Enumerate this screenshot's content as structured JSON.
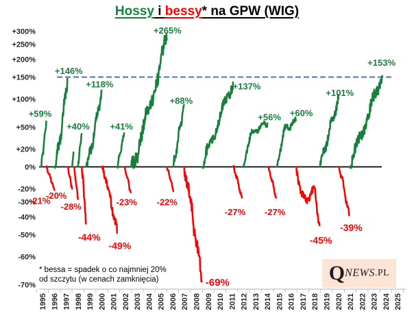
{
  "title": {
    "part1": "Hossy",
    "part2": " i ",
    "part3": "bessy",
    "part4": "*",
    "part5": " na GPW (WIG)"
  },
  "footnote": {
    "line1": "* bessa = spadek o co najmniej 20%",
    "line2": "od szczytu (w cenach zamknięcia)"
  },
  "logo": {
    "q": "Q",
    "news": "NEWS",
    "pl": ".PL"
  },
  "colors": {
    "bull": "#17803d",
    "bear": "#ff0000",
    "reference": "#4472c4",
    "axis_text": "#262626",
    "axis_line": "#bfbfbf",
    "zero_line": "#000000"
  },
  "chart_data": {
    "type": "line",
    "title": "Hossy i bessy* na GPW (WIG)",
    "subtitle_note": "green = bull market run-ups from 0%, red = bear market drawdowns from 0%",
    "scale": "logarithmic percent change",
    "grid": "off",
    "reference_line": {
      "value": 150,
      "style": "dashed",
      "color": "#4472c4"
    },
    "y_axis": {
      "ticks": [
        {
          "value": 300,
          "label": "+300%"
        },
        {
          "value": 250,
          "label": "+250%"
        },
        {
          "value": 200,
          "label": "+200%"
        },
        {
          "value": 150,
          "label": "+150%"
        },
        {
          "value": 100,
          "label": "+100%"
        },
        {
          "value": 50,
          "label": "+50%"
        },
        {
          "value": 20,
          "label": "+20%"
        },
        {
          "value": 0,
          "label": "0%"
        },
        {
          "value": -20,
          "label": "-20%"
        },
        {
          "value": -30,
          "label": "-30%"
        },
        {
          "value": -40,
          "label": "-40%"
        },
        {
          "value": -50,
          "label": "-50%"
        },
        {
          "value": -60,
          "label": "-60%"
        },
        {
          "value": -70,
          "label": "-70%"
        }
      ]
    },
    "x_axis": {
      "ticks": [
        1995,
        1996,
        1997,
        1998,
        1999,
        2000,
        2001,
        2002,
        2003,
        2004,
        2005,
        2006,
        2007,
        2008,
        2009,
        2010,
        2011,
        2012,
        2013,
        2014,
        2015,
        2016,
        2017,
        2018,
        2019,
        2020,
        2021,
        2022,
        2023,
        2024,
        2025
      ]
    },
    "segments": [
      {
        "type": "bull",
        "label": "+59%",
        "value": 59,
        "start": 1994.9,
        "end": 1995.32,
        "shape": 1.0,
        "label_dx": -9,
        "label_dy": -10
      },
      {
        "type": "bear",
        "label": "-21%",
        "value": -21,
        "start": 1995.32,
        "end": 1996.0,
        "shape": 1.1,
        "label_dx": -21,
        "label_dy": 17
      },
      {
        "type": "bull",
        "label": "+146%",
        "value": 146,
        "start": 1996.0,
        "end": 1997.1,
        "shape": 1.35,
        "label_dx": 2,
        "label_dy": -10
      },
      {
        "type": "bear",
        "label": "-20%",
        "value": -20,
        "start": 1997.12,
        "end": 1997.5,
        "shape": 1.1,
        "label_dx": -23,
        "label_dy": 11
      },
      {
        "type": "bull",
        "label": "",
        "value": 16,
        "start": 1997.5,
        "end": 1997.62,
        "shape": 1.0
      },
      {
        "type": "bear",
        "label": "-28%",
        "value": -28,
        "start": 1997.64,
        "end": 1998.0,
        "shape": 1.1,
        "label_dx": -10,
        "label_dy": 12
      },
      {
        "type": "bull",
        "label": "+40%",
        "value": 40,
        "start": 1998.0,
        "end": 1998.3,
        "shape": 1.0,
        "label_dx": -5,
        "label_dy": -10
      },
      {
        "type": "bear",
        "label": "-44%",
        "value": -44,
        "start": 1998.32,
        "end": 1998.66,
        "shape": 1.2,
        "label_dx": 5,
        "label_dy": 21,
        "label_size": 14
      },
      {
        "type": "bull",
        "label": "+118%",
        "value": 118,
        "start": 1998.7,
        "end": 2000.0,
        "shape": 1.2,
        "label_dx": -3,
        "label_dy": -8
      },
      {
        "type": "bear",
        "label": "-49%",
        "value": -49,
        "start": 2000.02,
        "end": 2001.3,
        "shape": 1.25,
        "label_dx": 4,
        "label_dy": 20,
        "label_size": 14
      },
      {
        "type": "bull",
        "label": "+41%",
        "value": 41,
        "start": 2001.32,
        "end": 2001.9,
        "shape": 1.0,
        "label_dx": -4,
        "label_dy": -9
      },
      {
        "type": "bear",
        "label": "-23%",
        "value": -23,
        "start": 2001.92,
        "end": 2002.45,
        "shape": 1.1,
        "label_dx": -6,
        "label_dy": 15
      },
      {
        "type": "bull",
        "label": "+265%",
        "value": 265,
        "start": 2002.5,
        "end": 2005.5,
        "shape": 1.12,
        "label_dx": 1,
        "label_dy": -13
      },
      {
        "type": "bear",
        "label": "-22%",
        "value": -22,
        "start": 2005.52,
        "end": 2006.05,
        "shape": 1.1,
        "label_dx": -9,
        "label_dy": 17
      },
      {
        "type": "bull",
        "label": "+88%",
        "value": 88,
        "start": 2006.06,
        "end": 2006.95,
        "shape": 1.0,
        "label_dx": -4,
        "label_dy": -5
      },
      {
        "type": "bear",
        "label": "-69%",
        "value": -69,
        "start": 2006.97,
        "end": 2008.45,
        "shape": 1.15,
        "label_dx": 23,
        "label_dy": 2,
        "label_size": 15
      },
      {
        "type": "bull",
        "label": "+137%",
        "value": 137,
        "start": 2008.5,
        "end": 2011.1,
        "shape": 0.95,
        "label_dx": 20,
        "label_dy": 7
      },
      {
        "type": "bear",
        "label": "-27%",
        "value": -27,
        "start": 2011.12,
        "end": 2011.85,
        "shape": 1.1,
        "label_dx": -10,
        "label_dy": 22
      },
      {
        "type": "bull",
        "label": "+56%",
        "value": 56,
        "start": 2011.9,
        "end": 2014.0,
        "profile": "early-plateau",
        "label_dx": 3,
        "label_dy": -8
      },
      {
        "type": "bear",
        "label": "-27%",
        "value": -27,
        "start": 2014.05,
        "end": 2014.75,
        "shape": 1.1,
        "label_dx": -2,
        "label_dy": 22
      },
      {
        "type": "bull",
        "label": "+60%",
        "value": 60,
        "start": 2014.8,
        "end": 2016.4,
        "profile": "early-plateau",
        "label_dx": 8,
        "label_dy": -10
      },
      {
        "type": "bear",
        "label": "-45%",
        "value": -45,
        "start": 2016.45,
        "end": 2018.4,
        "profile": "late-plunge",
        "label_dx": 2,
        "label_dy": 23,
        "label_size": 14
      },
      {
        "type": "bull",
        "label": "+101%",
        "value": 101,
        "start": 2018.45,
        "end": 2020.0,
        "shape": 0.95,
        "label_dx": 2,
        "label_dy": -7
      },
      {
        "type": "bear",
        "label": "-39%",
        "value": -39,
        "start": 2020.05,
        "end": 2020.9,
        "shape": 1.1,
        "label_dx": 3,
        "label_dy": 19,
        "label_size": 14
      },
      {
        "type": "bull",
        "label": "+153%",
        "value": 153,
        "start": 2020.95,
        "end": 2023.7,
        "shape": 1.0,
        "label_dx": -1,
        "label_dy": -18
      }
    ]
  }
}
